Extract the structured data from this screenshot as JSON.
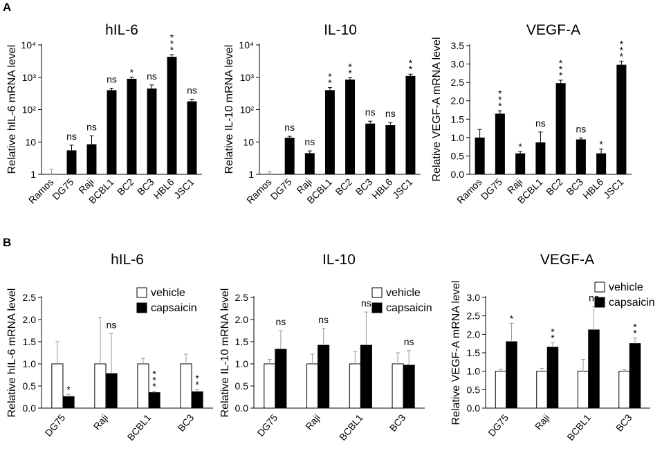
{
  "panels": {
    "a": "A",
    "b": "B"
  },
  "chart_data": [
    {
      "type": "bar",
      "title": "hIL-6",
      "ylabel": "Relative hIL-6 mRNA level",
      "yscale": "log",
      "ylim": [
        1,
        10000
      ],
      "yticks": [
        1,
        10,
        100,
        1000,
        10000
      ],
      "yticklabels": [
        "1",
        "10",
        "10²",
        "10³",
        "10⁴"
      ],
      "categories": [
        "Ramos",
        "DG75",
        "Raji",
        "BCBL1",
        "BC2",
        "BC3",
        "HBL6",
        "JSC1"
      ],
      "values": [
        1,
        5.5,
        8.5,
        400,
        900,
        450,
        4300,
        180
      ],
      "errors": [
        0.45,
        2.5,
        7,
        60,
        120,
        130,
        700,
        30
      ],
      "significance": [
        "",
        "ns",
        "ns",
        "ns",
        "*",
        "ns",
        "***",
        "ns"
      ]
    },
    {
      "type": "bar",
      "title": "IL-10",
      "ylabel": "Relative IL-10 mRNA level",
      "yscale": "log",
      "ylim": [
        1,
        10000
      ],
      "yticks": [
        1,
        10,
        100,
        1000,
        10000
      ],
      "yticklabels": [
        "1",
        "10",
        "10²",
        "10³",
        "10⁴"
      ],
      "categories": [
        "Ramos",
        "DG75",
        "Raji",
        "BCBL1",
        "BC2",
        "BC3",
        "HBL6",
        "JSC1"
      ],
      "values": [
        1,
        13.5,
        4.5,
        400,
        850,
        37,
        33,
        1100
      ],
      "errors": [
        0.2,
        1.5,
        0.8,
        80,
        120,
        7,
        7,
        150
      ],
      "significance": [
        "",
        "ns",
        "ns",
        "**",
        "**",
        "ns",
        "ns",
        "**"
      ]
    },
    {
      "type": "bar",
      "title": "VEGF-A",
      "ylabel": "Relative VEGF-A mRNA level",
      "yscale": "linear",
      "ylim": [
        0,
        3.5
      ],
      "yticks": [
        0,
        0.5,
        1,
        1.5,
        2,
        2.5,
        3,
        3.5
      ],
      "yticklabels": [
        "0.0",
        "0.5",
        "1.0",
        "1.5",
        "2.0",
        "2.5",
        "3.0",
        "3.5"
      ],
      "categories": [
        "Ramos",
        "DG75",
        "Raji",
        "BCBL1",
        "BC2",
        "BC3",
        "HBL6",
        "JSC1"
      ],
      "values": [
        1.0,
        1.65,
        0.57,
        0.87,
        2.48,
        0.95,
        0.57,
        2.98
      ],
      "errors": [
        0.22,
        0.08,
        0.05,
        0.28,
        0.08,
        0.04,
        0.12,
        0.1
      ],
      "significance": [
        "",
        "***",
        "*",
        "ns",
        "***",
        "ns",
        "*",
        "***"
      ]
    },
    {
      "type": "bar",
      "title": "hIL-6",
      "ylabel": "Relative hIL-6  mRNA level",
      "ylim": [
        0,
        2.5
      ],
      "yticks": [
        0,
        0.5,
        1,
        1.5,
        2,
        2.5
      ],
      "yticklabels": [
        "0.0",
        "0.5",
        "1.0",
        "1.5",
        "2.0",
        "2.5"
      ],
      "categories": [
        "DG75",
        "Raji",
        "BCBL1",
        "BC3"
      ],
      "legend": [
        "vehicle",
        "capsaicin"
      ],
      "series": [
        {
          "name": "vehicle",
          "values": [
            1.0,
            1.0,
            1.0,
            1.0
          ],
          "errors": [
            0.5,
            1.05,
            0.12,
            0.22
          ]
        },
        {
          "name": "capsaicin",
          "values": [
            0.26,
            0.78,
            0.35,
            0.37
          ],
          "errors": [
            0.05,
            0.9,
            0.03,
            0.05
          ]
        }
      ],
      "significance": [
        "*",
        "ns",
        "***",
        "**"
      ]
    },
    {
      "type": "bar",
      "title": "IL-10",
      "ylabel": "Relative IL-10 mRNA level",
      "ylim": [
        0,
        2.5
      ],
      "yticks": [
        0,
        0.5,
        1,
        1.5,
        2,
        2.5
      ],
      "yticklabels": [
        "0.0",
        "0.5",
        "1.0",
        "1.5",
        "2.0",
        "2.5"
      ],
      "categories": [
        "DG75",
        "Raji",
        "BCBL1",
        "BC3"
      ],
      "legend": [
        "vehicle",
        "capsaicin"
      ],
      "series": [
        {
          "name": "vehicle",
          "values": [
            1.0,
            1.0,
            1.0,
            1.0
          ],
          "errors": [
            0.1,
            0.22,
            0.28,
            0.25
          ]
        },
        {
          "name": "capsaicin",
          "values": [
            1.33,
            1.42,
            1.42,
            0.97
          ],
          "errors": [
            0.42,
            0.38,
            0.75,
            0.33
          ]
        }
      ],
      "significance": [
        "ns",
        "ns",
        "ns",
        "ns"
      ]
    },
    {
      "type": "bar",
      "title": "VEGF-A",
      "ylabel": "Relative VEGF-A mRNA level",
      "ylim": [
        0,
        3.0
      ],
      "yticks": [
        0,
        0.5,
        1,
        1.5,
        2,
        2.5,
        3
      ],
      "yticklabels": [
        "0.0",
        "0.5",
        "1.0",
        "1.5",
        "2.0",
        "2.5",
        "3.0"
      ],
      "categories": [
        "DG75",
        "Raji",
        "BCBL1",
        "BC3"
      ],
      "legend": [
        "vehicle",
        "capsaicin"
      ],
      "series": [
        {
          "name": "vehicle",
          "values": [
            1.0,
            1.0,
            1.0,
            1.0
          ],
          "errors": [
            0.05,
            0.08,
            0.32,
            0.04
          ]
        },
        {
          "name": "capsaicin",
          "values": [
            1.8,
            1.65,
            2.12,
            1.75
          ],
          "errors": [
            0.5,
            0.12,
            0.63,
            0.15
          ]
        }
      ],
      "significance": [
        "*",
        "**",
        "ns",
        "**"
      ]
    }
  ]
}
